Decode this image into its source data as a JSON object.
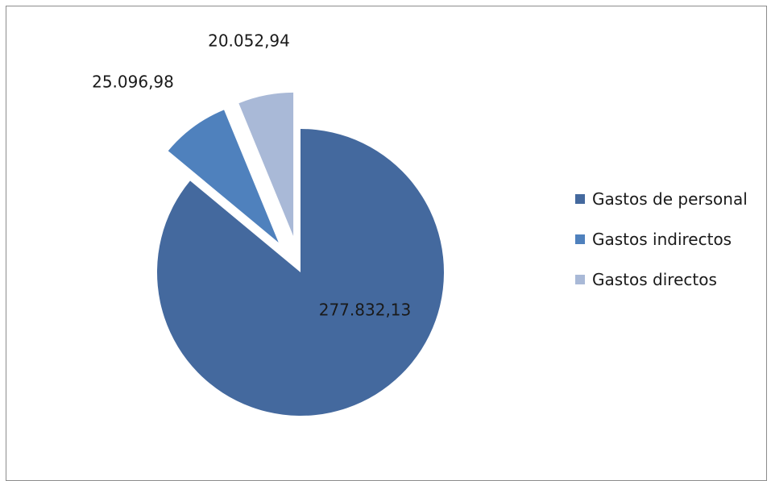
{
  "chart_data": {
    "type": "pie",
    "style": "exploded",
    "title": "",
    "slices": [
      {
        "name": "Gastos de personal",
        "value": 277832.13,
        "label": "277.832,13",
        "color": "#44699e"
      },
      {
        "name": "Gastos indirectos",
        "value": 25096.98,
        "label": "25.096,98",
        "color": "#4f81bd"
      },
      {
        "name": "Gastos directos",
        "value": 20052.94,
        "label": "20.052,94",
        "color": "#a9b9d7"
      }
    ],
    "legend_position": "right"
  }
}
